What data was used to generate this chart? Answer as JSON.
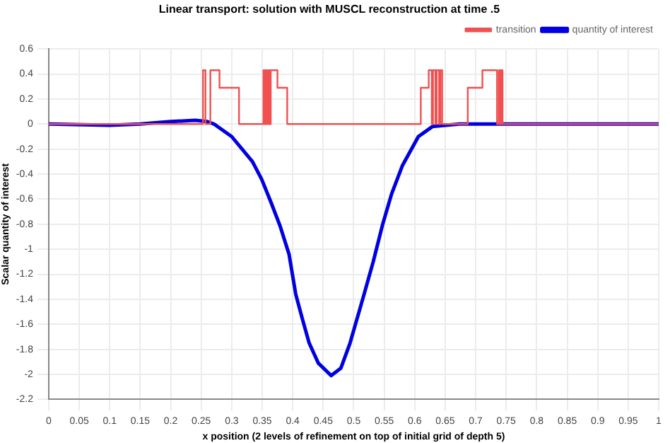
{
  "chart_data": {
    "type": "line",
    "title": "Linear transport: solution with MUSCL reconstruction at time .5",
    "xlabel": "x position (2 levels of refinement on top of initial grid of depth 5)",
    "ylabel": "Scalar quantity of interest",
    "xlim": [
      0,
      1
    ],
    "xticks": [
      0,
      0.05,
      0.1,
      0.15,
      0.2,
      0.25,
      0.3,
      0.35,
      0.4,
      0.45,
      0.5,
      0.55,
      0.6,
      0.65,
      0.7,
      0.75,
      0.8,
      0.85,
      0.9,
      0.95,
      1
    ],
    "ylim": [
      -2.2,
      0.6
    ],
    "yticks": [
      -2.2,
      -2,
      -1.8,
      -1.6,
      -1.4,
      -1.2,
      -1,
      -0.8,
      -0.6,
      -0.4,
      -0.2,
      0,
      0.2,
      0.4,
      0.6
    ],
    "grid": true,
    "legend": "top right",
    "marker": "none",
    "series": [
      {
        "name": "transition",
        "type": "step",
        "color": "#f05050",
        "x": [
          0,
          0.253,
          0.257,
          0.265,
          0.28,
          0.312,
          0.352,
          0.354,
          0.356,
          0.358,
          0.36,
          0.362,
          0.364,
          0.375,
          0.391,
          0.61,
          0.623,
          0.628,
          0.63,
          0.634,
          0.636,
          0.64,
          0.642,
          0.645,
          0.687,
          0.711,
          0.735,
          0.738,
          0.74,
          0.742,
          0.744,
          1
        ],
        "values": [
          0,
          0.43,
          0,
          0.43,
          0.29,
          0,
          0.43,
          0,
          0.43,
          0,
          0.43,
          0,
          0.43,
          0.29,
          0,
          0.29,
          0.43,
          0,
          0.43,
          0,
          0.43,
          0,
          0.43,
          0,
          0.29,
          0.43,
          0,
          0.43,
          0,
          0.43,
          0,
          0
        ]
      },
      {
        "name": "quantity of interest",
        "type": "line",
        "color": "#0000e0",
        "x": [
          0,
          0.1,
          0.15,
          0.2,
          0.24,
          0.26,
          0.271,
          0.3,
          0.334,
          0.349,
          0.364,
          0.379,
          0.394,
          0.405,
          0.416,
          0.427,
          0.442,
          0.463,
          0.479,
          0.494,
          0.517,
          0.532,
          0.547,
          0.562,
          0.58,
          0.606,
          0.629,
          0.673,
          1
        ],
        "values": [
          0,
          -0.01,
          0,
          0.02,
          0.03,
          0.02,
          0,
          -0.1,
          -0.3,
          -0.44,
          -0.62,
          -0.81,
          -1.04,
          -1.36,
          -1.56,
          -1.75,
          -1.91,
          -2.01,
          -1.95,
          -1.75,
          -1.36,
          -1.1,
          -0.81,
          -0.56,
          -0.33,
          -0.1,
          -0.02,
          0,
          0
        ]
      }
    ]
  }
}
